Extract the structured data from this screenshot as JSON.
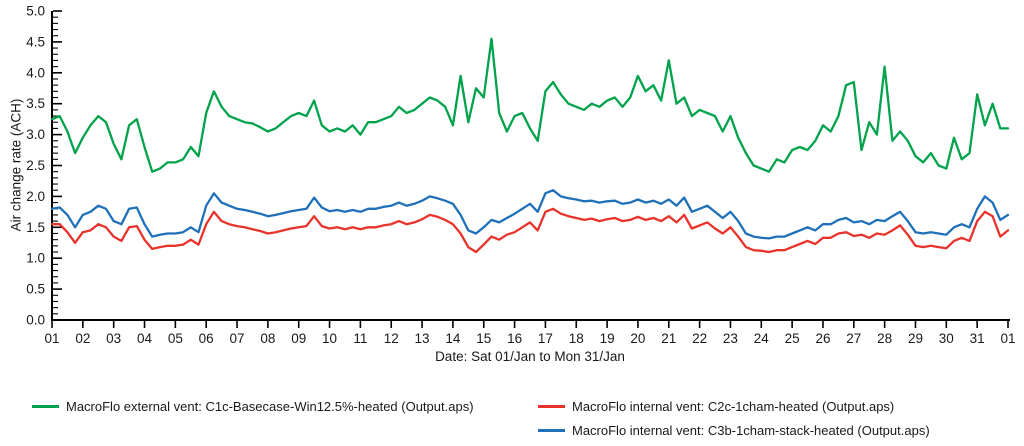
{
  "figure": {
    "x_axis_title": "Date: Sat 01/Jan to Mon 31/Jan",
    "y_axis_title": "Air change rate (ACH)"
  },
  "legend": [
    {
      "label": "MacroFlo external vent: C1c-Basecase-Win12.5%-heated (Output.aps)",
      "color": "#00a24c",
      "swatch_icon": "line-swatch"
    },
    {
      "label": "MacroFlo internal vent: C2c-1cham-heated (Output.aps)",
      "color": "#e8332b",
      "swatch_icon": "line-swatch"
    },
    {
      "label": "MacroFlo internal vent: C3b-1cham-stack-heated (Output.aps)",
      "color": "#1f70b8",
      "swatch_icon": "line-swatch"
    }
  ],
  "chart_data": {
    "type": "line",
    "title": "",
    "xlabel": "Date: Sat 01/Jan to Mon 31/Jan",
    "ylabel": "Air change rate (ACH)",
    "ylim": [
      0.0,
      5.0
    ],
    "ytick_step": 0.5,
    "y_minor_tick_step": 0.1,
    "xlim": [
      1,
      32
    ],
    "xtick_labels": [
      "01",
      "02",
      "03",
      "04",
      "05",
      "06",
      "07",
      "08",
      "09",
      "10",
      "11",
      "12",
      "13",
      "14",
      "15",
      "16",
      "17",
      "18",
      "19",
      "20",
      "21",
      "22",
      "23",
      "24",
      "25",
      "26",
      "27",
      "28",
      "29",
      "30",
      "31",
      "01"
    ],
    "grid": false,
    "legend_position": "bottom",
    "axis_color": "#000000",
    "series": [
      {
        "name": "MacroFlo external vent: C1c-Basecase-Win12.5%-heated (Output.aps)",
        "color": "#00a24c",
        "x_start": 1,
        "x_step": 0.25,
        "values": [
          3.25,
          3.3,
          3.05,
          2.7,
          2.95,
          3.15,
          3.3,
          3.2,
          2.85,
          2.6,
          3.15,
          3.25,
          2.8,
          2.4,
          2.45,
          2.55,
          2.55,
          2.6,
          2.8,
          2.65,
          3.35,
          3.7,
          3.45,
          3.3,
          3.25,
          3.2,
          3.18,
          3.12,
          3.05,
          3.1,
          3.2,
          3.3,
          3.35,
          3.3,
          3.55,
          3.15,
          3.05,
          3.1,
          3.05,
          3.15,
          3.0,
          3.2,
          3.2,
          3.25,
          3.3,
          3.45,
          3.35,
          3.4,
          3.5,
          3.6,
          3.55,
          3.45,
          3.15,
          3.95,
          3.2,
          3.75,
          3.6,
          4.55,
          3.35,
          3.05,
          3.3,
          3.35,
          3.1,
          2.9,
          3.7,
          3.85,
          3.65,
          3.5,
          3.45,
          3.4,
          3.5,
          3.45,
          3.55,
          3.6,
          3.45,
          3.6,
          3.95,
          3.7,
          3.8,
          3.55,
          4.2,
          3.5,
          3.6,
          3.3,
          3.4,
          3.35,
          3.3,
          3.05,
          3.3,
          2.95,
          2.7,
          2.5,
          2.45,
          2.4,
          2.6,
          2.55,
          2.75,
          2.8,
          2.75,
          2.9,
          3.15,
          3.05,
          3.3,
          3.8,
          3.85,
          2.75,
          3.2,
          3.0,
          4.1,
          2.9,
          3.05,
          2.9,
          2.65,
          2.55,
          2.7,
          2.5,
          2.45,
          2.95,
          2.6,
          2.7,
          3.65,
          3.15,
          3.5,
          3.1,
          3.1
        ]
      },
      {
        "name": "MacroFlo internal vent: C2c-1cham-heated (Output.aps)",
        "color": "#e8332b",
        "x_start": 1,
        "x_step": 0.25,
        "values": [
          1.55,
          1.55,
          1.42,
          1.25,
          1.42,
          1.45,
          1.55,
          1.5,
          1.35,
          1.28,
          1.5,
          1.52,
          1.3,
          1.15,
          1.18,
          1.2,
          1.2,
          1.22,
          1.3,
          1.22,
          1.55,
          1.75,
          1.6,
          1.55,
          1.52,
          1.5,
          1.47,
          1.44,
          1.4,
          1.42,
          1.45,
          1.48,
          1.5,
          1.52,
          1.68,
          1.52,
          1.48,
          1.5,
          1.47,
          1.5,
          1.47,
          1.5,
          1.5,
          1.53,
          1.55,
          1.6,
          1.55,
          1.58,
          1.63,
          1.7,
          1.67,
          1.62,
          1.55,
          1.4,
          1.18,
          1.1,
          1.22,
          1.35,
          1.3,
          1.38,
          1.42,
          1.5,
          1.58,
          1.45,
          1.75,
          1.8,
          1.72,
          1.68,
          1.65,
          1.62,
          1.64,
          1.6,
          1.63,
          1.65,
          1.6,
          1.62,
          1.67,
          1.62,
          1.65,
          1.6,
          1.68,
          1.58,
          1.7,
          1.48,
          1.53,
          1.58,
          1.48,
          1.4,
          1.5,
          1.35,
          1.18,
          1.13,
          1.12,
          1.1,
          1.13,
          1.13,
          1.18,
          1.23,
          1.28,
          1.23,
          1.33,
          1.33,
          1.4,
          1.42,
          1.36,
          1.38,
          1.33,
          1.4,
          1.38,
          1.45,
          1.53,
          1.38,
          1.2,
          1.18,
          1.2,
          1.18,
          1.16,
          1.28,
          1.33,
          1.28,
          1.6,
          1.75,
          1.68,
          1.35,
          1.45
        ]
      },
      {
        "name": "MacroFlo internal vent: C3b-1cham-stack-heated (Output.aps)",
        "color": "#1f70b8",
        "x_start": 1,
        "x_step": 0.25,
        "values": [
          1.8,
          1.82,
          1.7,
          1.5,
          1.7,
          1.75,
          1.85,
          1.8,
          1.6,
          1.55,
          1.8,
          1.82,
          1.55,
          1.35,
          1.38,
          1.4,
          1.4,
          1.42,
          1.5,
          1.42,
          1.85,
          2.05,
          1.9,
          1.85,
          1.8,
          1.78,
          1.75,
          1.72,
          1.68,
          1.7,
          1.73,
          1.76,
          1.78,
          1.8,
          1.98,
          1.82,
          1.76,
          1.78,
          1.75,
          1.78,
          1.75,
          1.8,
          1.8,
          1.83,
          1.85,
          1.9,
          1.85,
          1.88,
          1.93,
          2.0,
          1.97,
          1.93,
          1.88,
          1.7,
          1.45,
          1.4,
          1.5,
          1.62,
          1.58,
          1.65,
          1.72,
          1.8,
          1.88,
          1.75,
          2.05,
          2.1,
          2.0,
          1.97,
          1.95,
          1.92,
          1.93,
          1.9,
          1.92,
          1.93,
          1.88,
          1.9,
          1.95,
          1.9,
          1.93,
          1.88,
          1.95,
          1.85,
          1.98,
          1.75,
          1.8,
          1.85,
          1.75,
          1.65,
          1.75,
          1.6,
          1.4,
          1.35,
          1.33,
          1.32,
          1.35,
          1.35,
          1.4,
          1.45,
          1.5,
          1.45,
          1.55,
          1.55,
          1.62,
          1.65,
          1.58,
          1.6,
          1.55,
          1.62,
          1.6,
          1.68,
          1.75,
          1.6,
          1.42,
          1.4,
          1.42,
          1.4,
          1.38,
          1.5,
          1.55,
          1.5,
          1.8,
          2.0,
          1.9,
          1.62,
          1.7
        ]
      }
    ]
  }
}
